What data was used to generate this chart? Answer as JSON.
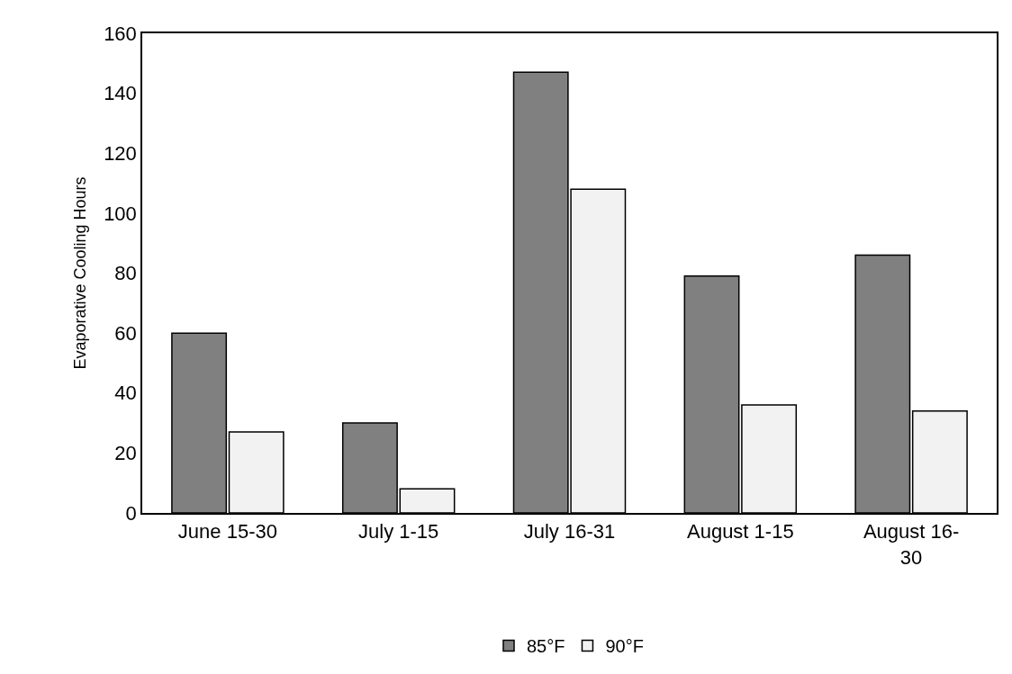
{
  "chart_data": {
    "type": "bar",
    "ylabel": "Evaporative Cooling Hours",
    "categories": [
      "June 15-30",
      "July 1-15",
      "July 16-31",
      "August 1-15",
      "August 16-30"
    ],
    "series": [
      {
        "name": "85°F",
        "color": "#808080",
        "values": [
          60,
          30,
          147,
          79,
          86
        ]
      },
      {
        "name": "90°F",
        "color": "#f2f2f2",
        "values": [
          27,
          8,
          108,
          36,
          34
        ]
      }
    ],
    "ylim": [
      0,
      160
    ],
    "yticks": [
      0,
      20,
      40,
      60,
      80,
      100,
      120,
      140,
      160
    ],
    "grid": false,
    "legend": "bottom"
  }
}
